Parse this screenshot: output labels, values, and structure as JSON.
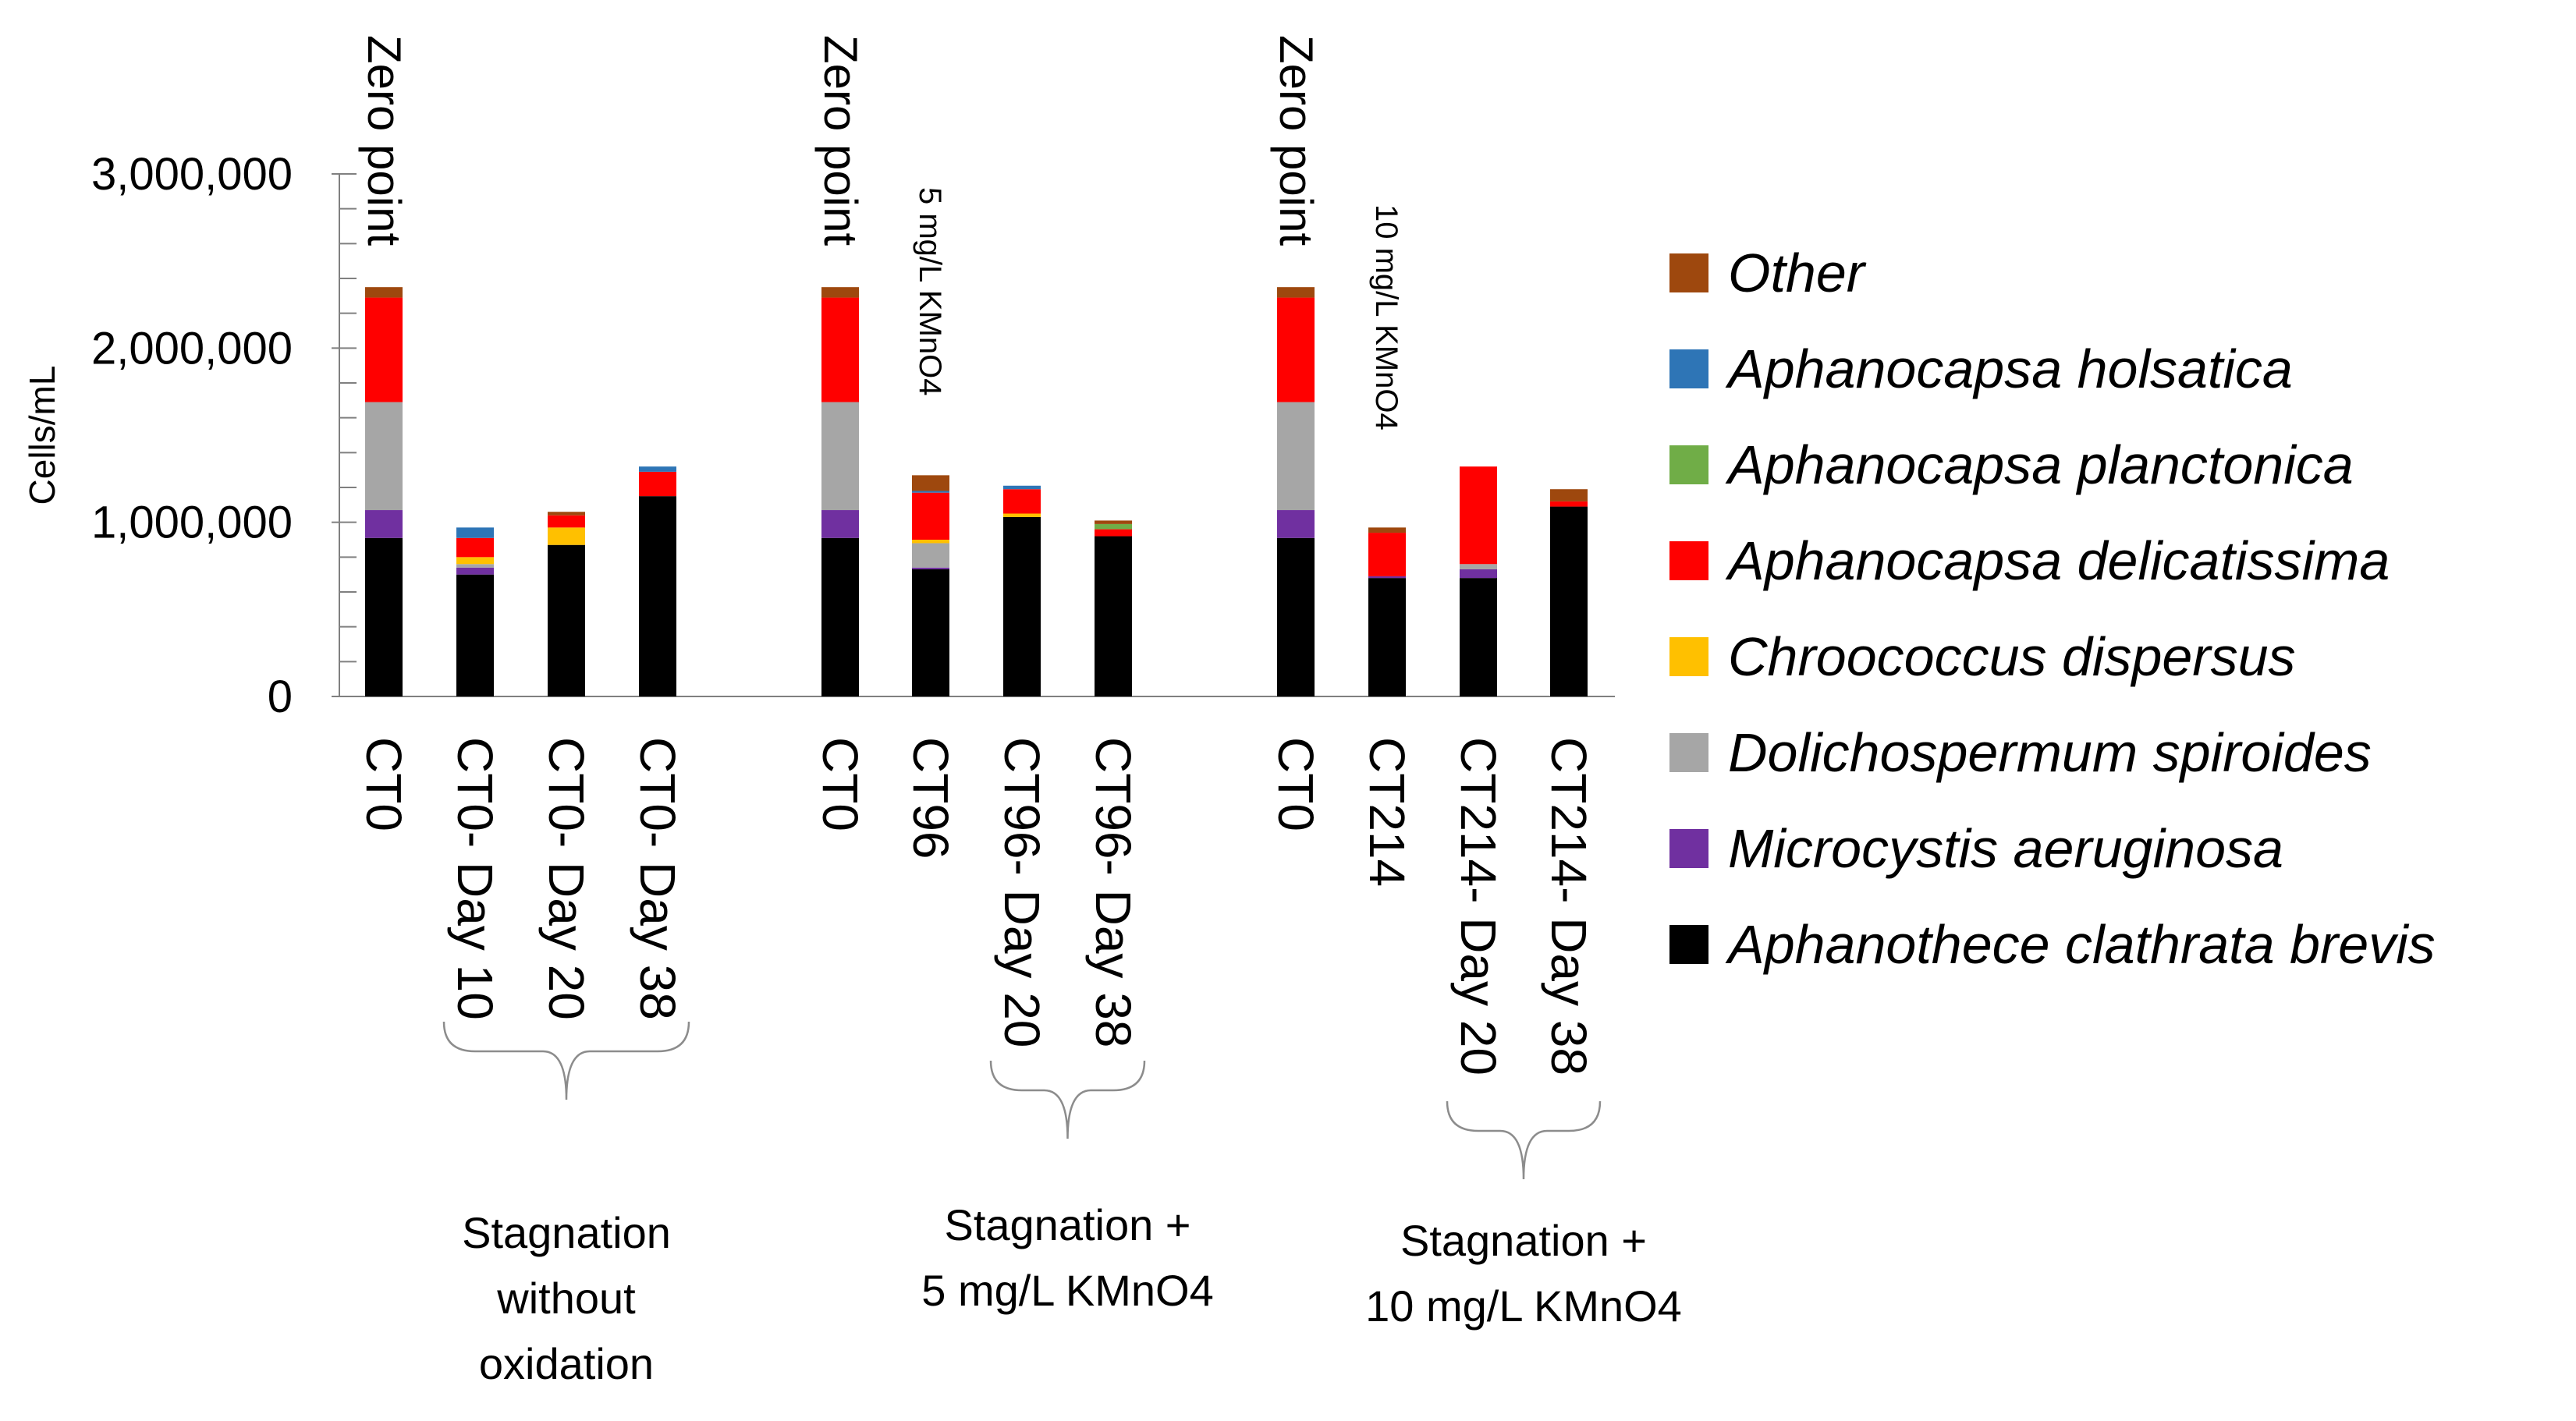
{
  "chart_data": {
    "type": "bar",
    "stacked": true,
    "ylabel": "Cells/mL",
    "ylim": [
      0,
      3000000
    ],
    "yticks": [
      0,
      1000000,
      2000000,
      3000000
    ],
    "ytick_labels": [
      "0",
      "1,000,000",
      "2,000,000",
      "3,000,000"
    ],
    "categories": [
      "CT0",
      "CT0- Day 10",
      "CT0- Day 20",
      "CT0- Day 38",
      "CT0",
      "CT96",
      "CT96- Day 20",
      "CT96- Day 38",
      "CT0",
      "CT214",
      "CT214- Day 20",
      "CT214- Day 38"
    ],
    "series": [
      {
        "name": "Aphanothece clathrata brevis",
        "color": "#000000",
        "values": [
          910000,
          700000,
          870000,
          1150000,
          910000,
          730000,
          1030000,
          920000,
          910000,
          680000,
          680000,
          1090000
        ]
      },
      {
        "name": "Microcystis aeruginosa",
        "color": "#7030A0",
        "values": [
          160000,
          40000,
          0,
          0,
          160000,
          10000,
          0,
          0,
          160000,
          10000,
          50000,
          0
        ]
      },
      {
        "name": "Dolichospermum spiroides",
        "color": "#A6A6A6",
        "values": [
          620000,
          20000,
          0,
          0,
          620000,
          140000,
          0,
          0,
          620000,
          0,
          30000,
          0
        ]
      },
      {
        "name": "Chroococcus dispersus",
        "color": "#FFC000",
        "values": [
          0,
          40000,
          100000,
          0,
          0,
          20000,
          20000,
          0,
          0,
          0,
          0,
          0
        ]
      },
      {
        "name": "Aphanocapsa delicatissima",
        "color": "#FF0000",
        "values": [
          600000,
          110000,
          70000,
          140000,
          600000,
          270000,
          140000,
          40000,
          600000,
          250000,
          560000,
          30000
        ]
      },
      {
        "name": "Aphanocapsa planctonica",
        "color": "#70AD47",
        "values": [
          0,
          0,
          0,
          0,
          0,
          0,
          0,
          30000,
          0,
          0,
          0,
          0
        ]
      },
      {
        "name": "Aphanocapsa holsatica",
        "color": "#2E75B6",
        "values": [
          0,
          60000,
          0,
          30000,
          0,
          10000,
          20000,
          0,
          0,
          0,
          0,
          0
        ]
      },
      {
        "name": "Other",
        "color": "#9E480E",
        "values": [
          60000,
          0,
          20000,
          0,
          60000,
          90000,
          0,
          20000,
          60000,
          30000,
          0,
          70000
        ]
      }
    ],
    "annotations": [
      {
        "text": "Zero point",
        "category_index": 0,
        "style": "large"
      },
      {
        "text": "Zero point",
        "category_index": 4,
        "style": "large"
      },
      {
        "text": "5 mg/L KMnO4",
        "category_index": 5,
        "style": "small"
      },
      {
        "text": "Zero point",
        "category_index": 8,
        "style": "large"
      },
      {
        "text": "10  mg/L KMnO4",
        "category_index": 9,
        "style": "small"
      }
    ],
    "groups": [
      {
        "label_lines": [
          "Stagnation",
          "without",
          "oxidation"
        ],
        "from_index": 1,
        "to_index": 3
      },
      {
        "label_lines": [
          "Stagnation +",
          "5 mg/L KMnO4"
        ],
        "from_index": 6,
        "to_index": 7
      },
      {
        "label_lines": [
          "Stagnation +",
          "10 mg/L KMnO4"
        ],
        "from_index": 10,
        "to_index": 11
      }
    ],
    "legend_position": "right",
    "legend_order": [
      "Other",
      "Aphanocapsa holsatica",
      "Aphanocapsa planctonica",
      "Aphanocapsa delicatissima",
      "Chroococcus dispersus",
      "Dolichospermum spiroides",
      "Microcystis aeruginosa",
      "Aphanothece clathrata brevis"
    ]
  }
}
